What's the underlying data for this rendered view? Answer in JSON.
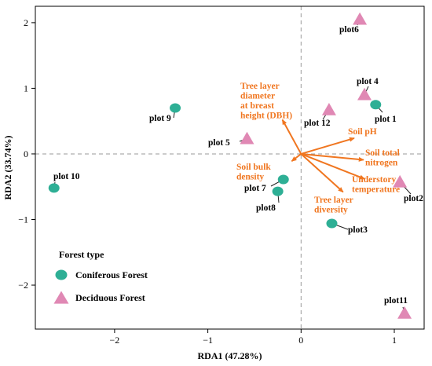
{
  "chart_data": {
    "type": "scatter",
    "xlabel": "RDA1 (47.28%)",
    "ylabel": "RDA2 (33.74%)",
    "xlim": [
      -2.85,
      1.32
    ],
    "ylim": [
      -2.67,
      2.25
    ],
    "xticks": [
      -2,
      -1,
      0,
      1
    ],
    "xtick_labels": [
      "−2",
      "−1",
      "0",
      "1"
    ],
    "yticks": [
      -2,
      -1,
      0,
      1,
      2
    ],
    "ytick_labels": [
      "−2",
      "−1",
      "0",
      "1",
      "2"
    ],
    "grid": false,
    "reference_lines": "dashed lines at x = 0 and y = 0",
    "colors": {
      "coniferous": "#2eaf95",
      "deciduous": "#e088b4",
      "arrows": "#f07620"
    },
    "legend": {
      "title": "Forest type",
      "position": "bottom-left",
      "items": [
        {
          "label": "Coniferous Forest",
          "shape": "circle",
          "color": "#2eaf95"
        },
        {
          "label": "Deciduous Forest",
          "shape": "triangle",
          "color": "#e088b4"
        }
      ]
    },
    "series": [
      {
        "name": "Coniferous Forest",
        "shape": "circle",
        "points": [
          {
            "label": "plot 1",
            "x": 0.8,
            "y": 0.75
          },
          {
            "label": "plot 9",
            "x": -1.35,
            "y": 0.7
          },
          {
            "label": "plot 10",
            "x": -2.65,
            "y": -0.52
          },
          {
            "label": "plot 7",
            "x": -0.19,
            "y": -0.39
          },
          {
            "label": "plot8",
            "x": -0.25,
            "y": -0.57
          },
          {
            "label": "plot3",
            "x": 0.33,
            "y": -1.06
          }
        ]
      },
      {
        "name": "Deciduous Forest",
        "shape": "triangle",
        "points": [
          {
            "label": "plot6",
            "x": 0.63,
            "y": 2.05
          },
          {
            "label": "plot 4",
            "x": 0.68,
            "y": 0.9
          },
          {
            "label": "plot 12",
            "x": 0.3,
            "y": 0.67
          },
          {
            "label": "plot 5",
            "x": -0.58,
            "y": 0.23
          },
          {
            "label": "plot2",
            "x": 1.06,
            "y": -0.43
          },
          {
            "label": "plot11",
            "x": 1.11,
            "y": -2.43
          }
        ]
      }
    ],
    "arrows": [
      {
        "label": "Tree layer diameter at breast height (DBH)",
        "lines": [
          "Tree layer",
          "diameter",
          "at breast",
          "height (DBH)"
        ],
        "x": -0.2,
        "y": 0.52
      },
      {
        "label": "Soil pH",
        "lines": [
          "Soil pH"
        ],
        "x": 0.57,
        "y": 0.24
      },
      {
        "label": "Soil total nitrogen",
        "lines": [
          "Soil total",
          "nitrogen"
        ],
        "x": 0.67,
        "y": -0.09
      },
      {
        "label": "Soil bulk density",
        "lines": [
          "Soil bulk",
          "density"
        ],
        "x": -0.1,
        "y": -0.11
      },
      {
        "label": "Understory temperature",
        "lines": [
          "Understory",
          "temperature"
        ],
        "x": 0.68,
        "y": -0.38
      },
      {
        "label": "Tree layer diversity",
        "lines": [
          "Tree layer",
          "diversity"
        ],
        "x": 0.45,
        "y": -0.58
      }
    ]
  }
}
